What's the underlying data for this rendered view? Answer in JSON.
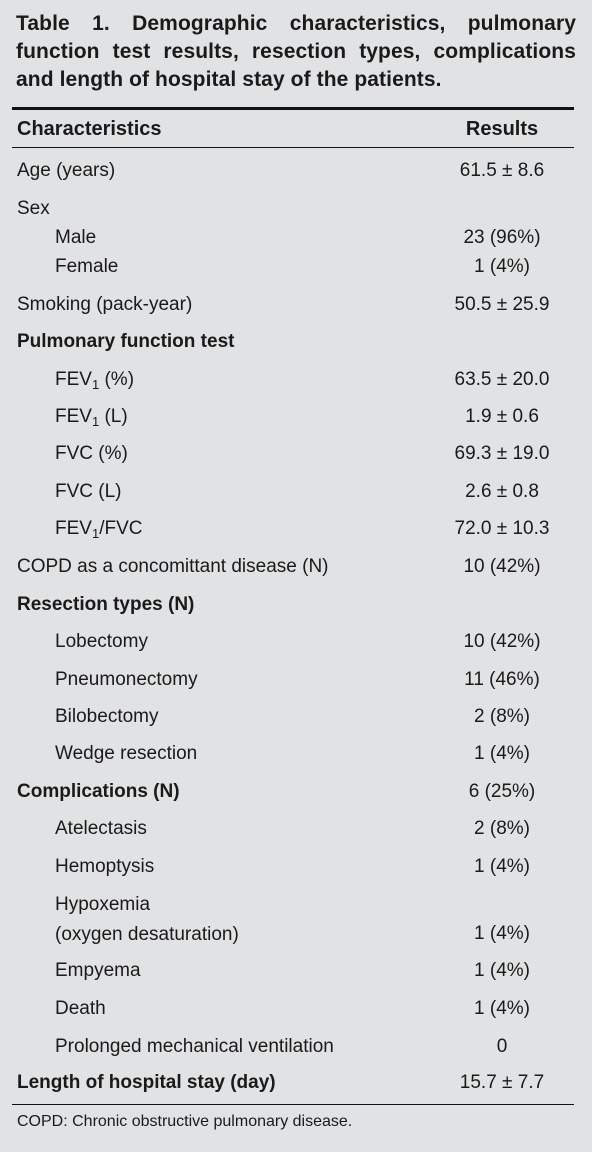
{
  "title": "Table 1. Demographic characteristics, pulmonary function test results, resection types, complications and length of hospital stay of the patients.",
  "header": {
    "characteristics": "Characteristics",
    "results": "Results"
  },
  "rows": [
    {
      "label": "Age (years)",
      "value": "61.5 ± 8.6"
    },
    {
      "label": "Sex",
      "value": ""
    },
    {
      "label": "Male",
      "value": "23 (96%)"
    },
    {
      "label": "Female",
      "value": "1 (4%)"
    },
    {
      "label": "Smoking (pack-year)",
      "value": "50.5 ± 25.9"
    },
    {
      "label": "Pulmonary function test",
      "value": ""
    },
    {
      "label_pre": "FEV",
      "label_sub": "1",
      "label_post": " (%)",
      "value": "63.5 ± 20.0"
    },
    {
      "label_pre": "FEV",
      "label_sub": "1",
      "label_post": " (L)",
      "value": "1.9 ± 0.6"
    },
    {
      "label": "FVC (%)",
      "value": "69.3 ± 19.0"
    },
    {
      "label": "FVC (L)",
      "value": "2.6 ± 0.8"
    },
    {
      "label_pre": "FEV",
      "label_sub": "1",
      "label_post": "/FVC",
      "value": "72.0 ± 10.3"
    },
    {
      "label": "COPD as a concomittant disease (N)",
      "value": "10 (42%)"
    },
    {
      "label": "Resection types (N)",
      "value": ""
    },
    {
      "label": "Lobectomy",
      "value": "10 (42%)"
    },
    {
      "label": "Pneumonectomy",
      "value": "11 (46%)"
    },
    {
      "label": "Bilobectomy",
      "value": "2 (8%)"
    },
    {
      "label": "Wedge resection",
      "value": "1 (4%)"
    },
    {
      "label": "Complications (N)",
      "value": "6 (25%)"
    },
    {
      "label": "Atelectasis",
      "value": "2 (8%)"
    },
    {
      "label": "Hemoptysis",
      "value": "1 (4%)"
    },
    {
      "label_line1": "Hypoxemia",
      "label_line2": "(oxygen desaturation)",
      "value": "1 (4%)"
    },
    {
      "label": "Empyema",
      "value": "1 (4%)"
    },
    {
      "label": "Death",
      "value": "1 (4%)"
    },
    {
      "label": "Prolonged mechanical ventilation",
      "value": "0"
    },
    {
      "label": "Length of hospital stay (day)",
      "value": "15.7 ± 7.7"
    }
  ],
  "footnote": "COPD: Chronic obstructive pulmonary disease."
}
